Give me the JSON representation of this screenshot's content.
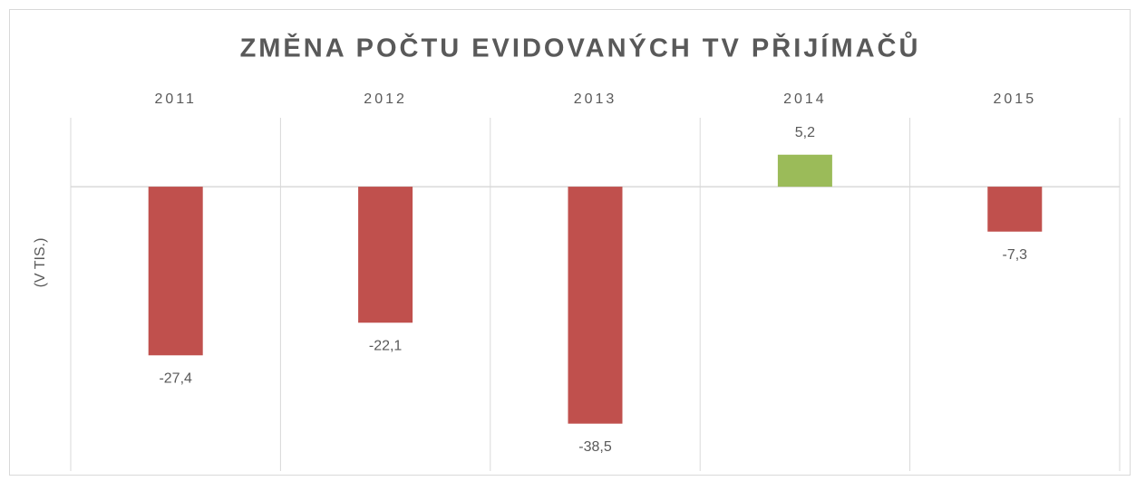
{
  "chart_data": {
    "type": "bar",
    "title": "ZMĚNA POČTU EVIDOVANÝCH TV PŘIJÍMAČŮ",
    "y_label": "(V TIS.)",
    "categories": [
      "2011",
      "2012",
      "2013",
      "2014",
      "2015"
    ],
    "values": [
      -27.4,
      -22.1,
      -38.5,
      5.2,
      -7.3
    ],
    "value_labels": [
      "-27,4",
      "-22,1",
      "-38,5",
      "5,2",
      "-7,3"
    ],
    "negative_color": "#c0504d",
    "positive_color": "#9bbb59",
    "ylim": [
      -46.2,
      11.2
    ],
    "grid": true
  }
}
